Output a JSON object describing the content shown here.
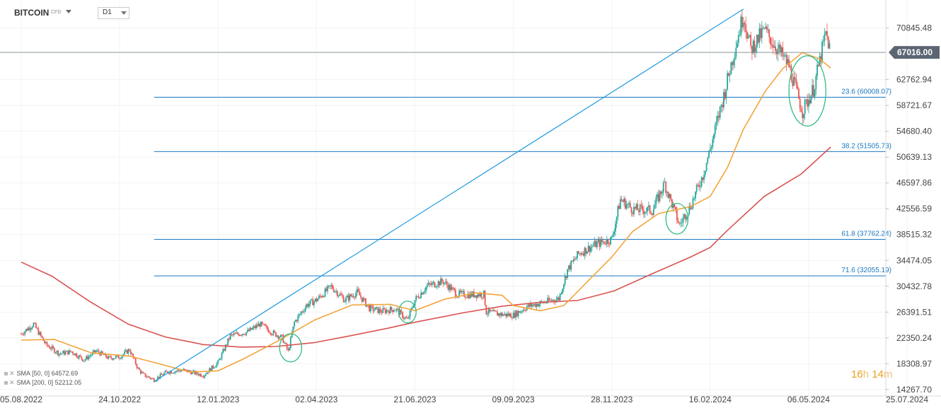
{
  "header": {
    "symbol": "BITCOIN",
    "instrument_type": "CFD",
    "timeframe": "D1"
  },
  "timer": {
    "hours": "16",
    "hours_unit": "h",
    "minutes": "14",
    "minutes_unit": "m"
  },
  "legend": [
    {
      "label": "SMA",
      "params": "[50, 0]",
      "value": "64572.69",
      "color": "#f2a53b"
    },
    {
      "label": "SMA",
      "params": "[200, 0]",
      "value": "52212.05",
      "color": "#d9534f"
    }
  ],
  "colors": {
    "up": "#26a69a",
    "down": "#ef5350",
    "trendline": "#1e9be0",
    "fib": "#1a78c2",
    "sma50": "#f2a53b",
    "sma200": "#d9534f",
    "price_badge": "#5c6673",
    "highlight": "#2ebd85"
  },
  "chart_data": {
    "type": "candlestick",
    "symbol": "BITCOIN",
    "timeframe": "D1",
    "ylim": [
      13260,
      75220
    ],
    "y_ticks": [
      "70845.48",
      "62762.94",
      "58721.67",
      "54680.40",
      "50639.13",
      "46597.86",
      "42556.59",
      "38515.32",
      "34474.05",
      "30432.78",
      "26391.51",
      "22350.24",
      "18308.97",
      "14267.70"
    ],
    "x_ticks": [
      "05.08.2022",
      "24.10.2022",
      "12.01.2023",
      "02.04.2023",
      "21.06.2023",
      "09.09.2023",
      "28.11.2023",
      "16.02.2024",
      "06.05.2024",
      "25.07.2024"
    ],
    "current_price": "67016.00",
    "fibonacci_levels": [
      {
        "label": "23.6 (60008.07)",
        "value": 60008.07
      },
      {
        "label": "38.2 (51505.73)",
        "value": 51505.73
      },
      {
        "label": "61.8 (37762.24)",
        "value": 37762.24
      },
      {
        "label": "71.6 (32055.19)",
        "value": 32055.19
      }
    ],
    "trendline": [
      {
        "x": "2022-11-21",
        "y": 15500
      },
      {
        "x": "2024-03-14",
        "y": 73800
      }
    ],
    "series": [
      {
        "name": "BITCOIN",
        "kind": "close",
        "points": [
          [
            "2022-08-05",
            23000
          ],
          [
            "2022-08-15",
            24500
          ],
          [
            "2022-08-25",
            21300
          ],
          [
            "2022-09-05",
            19900
          ],
          [
            "2022-09-15",
            20200
          ],
          [
            "2022-09-25",
            18900
          ],
          [
            "2022-10-05",
            20300
          ],
          [
            "2022-10-15",
            19200
          ],
          [
            "2022-10-24",
            19400
          ],
          [
            "2022-11-01",
            20500
          ],
          [
            "2022-11-08",
            17500
          ],
          [
            "2022-11-12",
            16600
          ],
          [
            "2022-11-21",
            15800
          ],
          [
            "2022-12-01",
            17000
          ],
          [
            "2022-12-15",
            17300
          ],
          [
            "2022-12-31",
            16500
          ],
          [
            "2023-01-12",
            18500
          ],
          [
            "2023-01-22",
            22700
          ],
          [
            "2023-02-05",
            23300
          ],
          [
            "2023-02-15",
            24500
          ],
          [
            "2023-02-25",
            23200
          ],
          [
            "2023-03-05",
            22400
          ],
          [
            "2023-03-10",
            20200
          ],
          [
            "2023-03-15",
            24800
          ],
          [
            "2023-03-25",
            27500
          ],
          [
            "2023-04-02",
            28300
          ],
          [
            "2023-04-14",
            30400
          ],
          [
            "2023-04-25",
            28300
          ],
          [
            "2023-05-05",
            29500
          ],
          [
            "2023-05-15",
            27000
          ],
          [
            "2023-05-25",
            26500
          ],
          [
            "2023-06-05",
            26900
          ],
          [
            "2023-06-15",
            25100
          ],
          [
            "2023-06-21",
            28300
          ],
          [
            "2023-07-01",
            30500
          ],
          [
            "2023-07-14",
            31200
          ],
          [
            "2023-07-25",
            29200
          ],
          [
            "2023-08-05",
            29100
          ],
          [
            "2023-08-16",
            29200
          ],
          [
            "2023-08-18",
            26400
          ],
          [
            "2023-08-31",
            26000
          ],
          [
            "2023-09-09",
            25900
          ],
          [
            "2023-09-20",
            27200
          ],
          [
            "2023-10-01",
            27800
          ],
          [
            "2023-10-16",
            28500
          ],
          [
            "2023-10-23",
            33000
          ],
          [
            "2023-11-01",
            35500
          ],
          [
            "2023-11-15",
            37000
          ],
          [
            "2023-11-28",
            37800
          ],
          [
            "2023-12-05",
            44000
          ],
          [
            "2023-12-15",
            42500
          ],
          [
            "2023-12-31",
            42300
          ],
          [
            "2024-01-10",
            46500
          ],
          [
            "2024-01-22",
            40000
          ],
          [
            "2024-01-31",
            43000
          ],
          [
            "2024-02-10",
            47800
          ],
          [
            "2024-02-16",
            51900
          ],
          [
            "2024-02-28",
            61000
          ],
          [
            "2024-03-05",
            66000
          ],
          [
            "2024-03-14",
            73000
          ],
          [
            "2024-03-20",
            67500
          ],
          [
            "2024-03-31",
            70500
          ],
          [
            "2024-04-12",
            67200
          ],
          [
            "2024-04-20",
            64900
          ],
          [
            "2024-05-01",
            57800
          ],
          [
            "2024-05-10",
            61300
          ],
          [
            "2024-05-20",
            70000
          ],
          [
            "2024-05-24",
            67016
          ]
        ]
      },
      {
        "name": "SMA [50, 0]",
        "kind": "line",
        "points": [
          [
            "2022-08-05",
            22000
          ],
          [
            "2022-09-01",
            22100
          ],
          [
            "2022-10-01",
            20000
          ],
          [
            "2022-11-01",
            19500
          ],
          [
            "2022-11-25",
            18300
          ],
          [
            "2022-12-20",
            17000
          ],
          [
            "2023-01-12",
            17200
          ],
          [
            "2023-02-01",
            19000
          ],
          [
            "2023-03-01",
            21800
          ],
          [
            "2023-04-01",
            25200
          ],
          [
            "2023-05-01",
            27500
          ],
          [
            "2023-06-01",
            27600
          ],
          [
            "2023-06-21",
            26600
          ],
          [
            "2023-07-15",
            28400
          ],
          [
            "2023-08-10",
            29400
          ],
          [
            "2023-08-31",
            29000
          ],
          [
            "2023-09-09",
            27400
          ],
          [
            "2023-10-01",
            26600
          ],
          [
            "2023-10-20",
            27400
          ],
          [
            "2023-11-10",
            31500
          ],
          [
            "2023-11-28",
            35000
          ],
          [
            "2023-12-15",
            39000
          ],
          [
            "2024-01-05",
            41800
          ],
          [
            "2024-01-31",
            42900
          ],
          [
            "2024-02-16",
            44500
          ],
          [
            "2024-03-01",
            49000
          ],
          [
            "2024-03-14",
            55000
          ],
          [
            "2024-04-01",
            61000
          ],
          [
            "2024-04-15",
            64500
          ],
          [
            "2024-05-01",
            67000
          ],
          [
            "2024-05-15",
            66000
          ],
          [
            "2024-05-24",
            64572.69
          ]
        ]
      },
      {
        "name": "SMA [200, 0]",
        "kind": "line",
        "points": [
          [
            "2022-08-05",
            34200
          ],
          [
            "2022-08-30",
            32000
          ],
          [
            "2022-09-30",
            28000
          ],
          [
            "2022-10-31",
            24500
          ],
          [
            "2022-11-30",
            22500
          ],
          [
            "2022-12-31",
            21300
          ],
          [
            "2023-01-31",
            20900
          ],
          [
            "2023-02-28",
            21000
          ],
          [
            "2023-03-31",
            21600
          ],
          [
            "2023-04-30",
            22700
          ],
          [
            "2023-05-31",
            23900
          ],
          [
            "2023-06-21",
            24800
          ],
          [
            "2023-07-31",
            26300
          ],
          [
            "2023-08-31",
            27300
          ],
          [
            "2023-09-30",
            27900
          ],
          [
            "2023-10-31",
            28200
          ],
          [
            "2023-11-30",
            29700
          ],
          [
            "2023-12-31",
            32400
          ],
          [
            "2024-01-31",
            35000
          ],
          [
            "2024-02-16",
            36500
          ],
          [
            "2024-02-29",
            39000
          ],
          [
            "2024-03-31",
            44500
          ],
          [
            "2024-04-30",
            48000
          ],
          [
            "2024-05-24",
            52212.05
          ]
        ]
      }
    ],
    "highlights": [
      {
        "name": "retest-feb-2023",
        "center": [
          "2023-03-12",
          20800
        ],
        "x_halfwidth_days": 9,
        "y_halfheight": 2200
      },
      {
        "name": "retest-jun-2023",
        "center": [
          "2023-06-15",
          26400
        ],
        "x_halfwidth_days": 7,
        "y_halfheight": 1700
      },
      {
        "name": "retest-jan-2024",
        "center": [
          "2024-01-20",
          41000
        ],
        "x_halfwidth_days": 9,
        "y_halfheight": 2400
      },
      {
        "name": "retest-apr-2024",
        "center": [
          "2024-05-05",
          61000
        ],
        "x_halfwidth_days": 15,
        "y_halfheight": 5500
      }
    ]
  }
}
